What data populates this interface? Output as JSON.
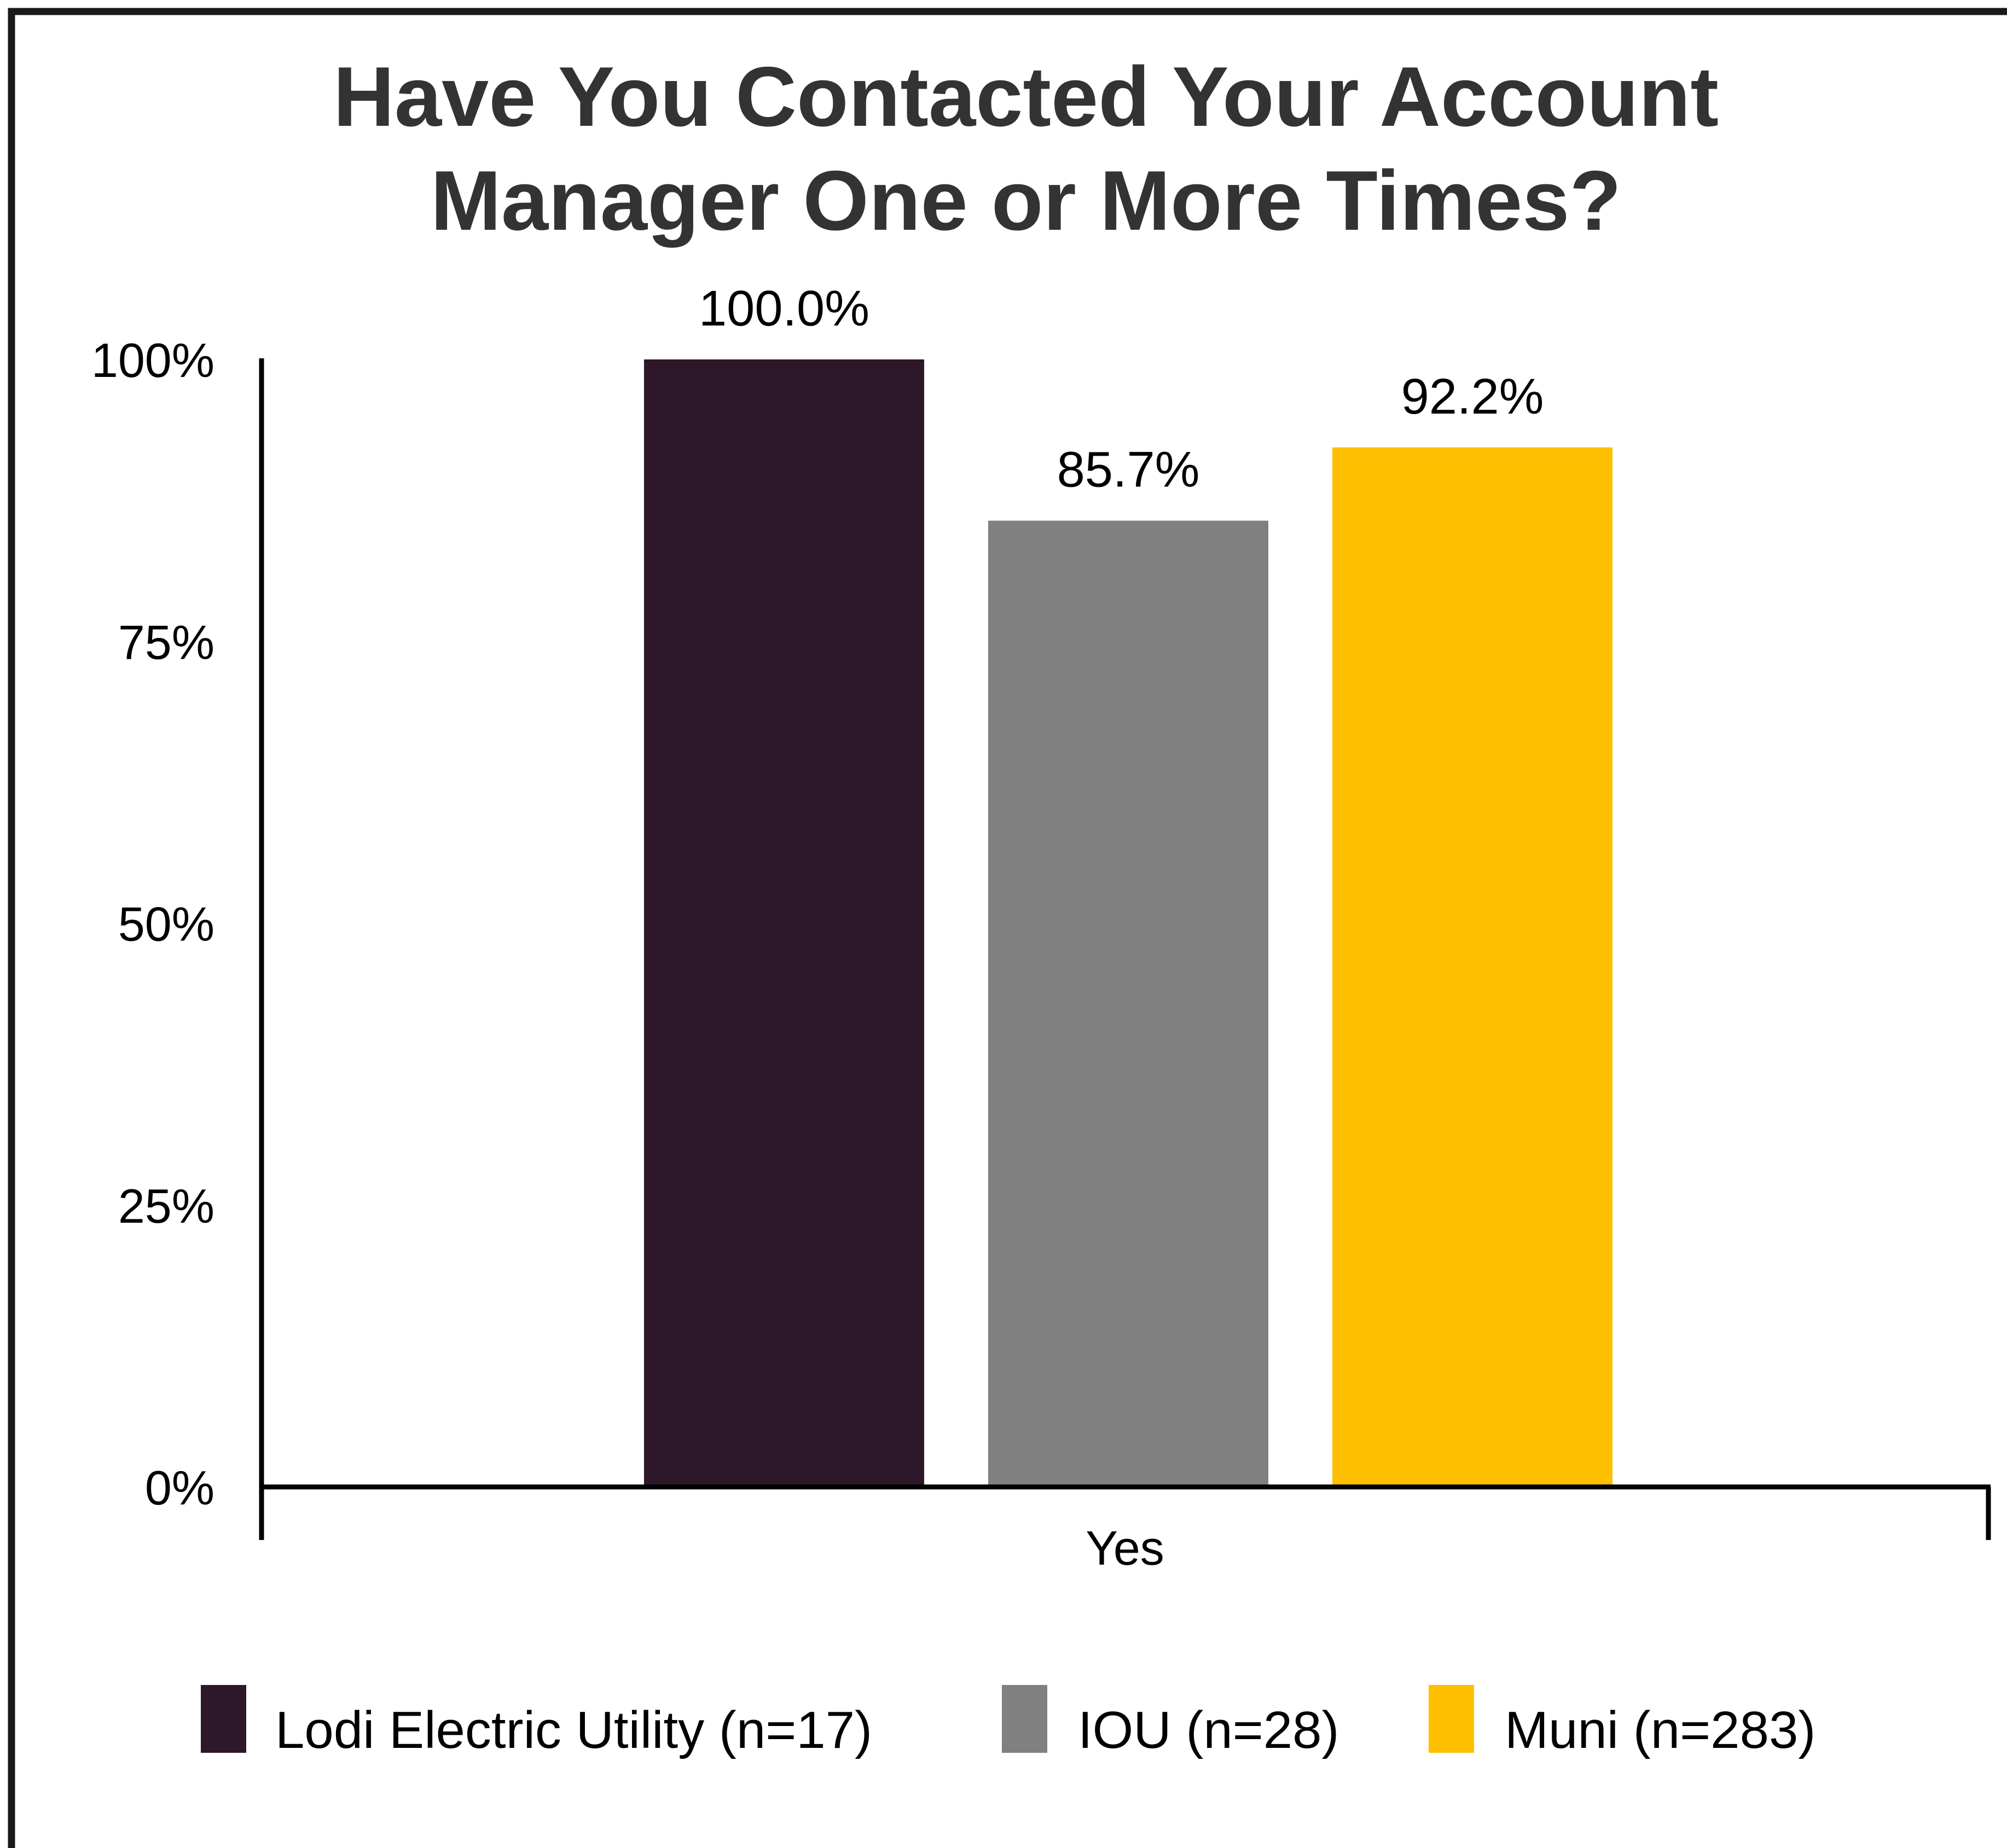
{
  "chart_data": {
    "type": "bar",
    "title_lines": [
      "Have You Contacted Your Account",
      "Manager One or More Times?"
    ],
    "categories": [
      "Yes"
    ],
    "series": [
      {
        "name": "Lodi Electric Utility (n=17)",
        "values": [
          100.0
        ],
        "label": "100.0%",
        "color": "#2e1729"
      },
      {
        "name": "IOU (n=28)",
        "values": [
          85.7
        ],
        "label": "85.7%",
        "color": "#808080"
      },
      {
        "name": "Muni (n=283)",
        "values": [
          92.2
        ],
        "label": "92.2%",
        "color": "#fdbf00"
      }
    ],
    "ylim": [
      0,
      100
    ],
    "y_ticks": [
      {
        "value": 0,
        "label": "0%"
      },
      {
        "value": 25,
        "label": "25%"
      },
      {
        "value": 50,
        "label": "50%"
      },
      {
        "value": 75,
        "label": "75%"
      },
      {
        "value": 100,
        "label": "100%"
      }
    ],
    "xlabel": "",
    "ylabel": "",
    "grid": false,
    "legend_position": "bottom",
    "colors": {
      "text": "#000000",
      "title": "#333333",
      "axis": "#000000",
      "frame": "#1a1a1a"
    }
  }
}
